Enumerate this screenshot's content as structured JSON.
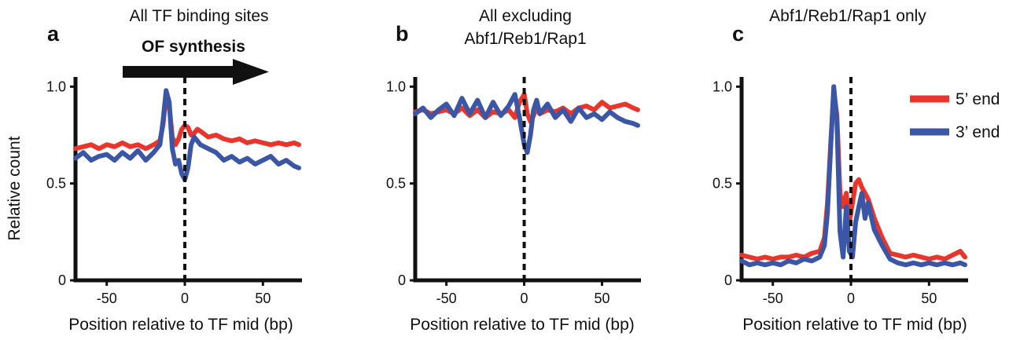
{
  "figure": {
    "ylabel": "Relative count",
    "xlabel": "Position relative to TF mid (bp)",
    "arrow_label": "OF synthesis",
    "legend": [
      {
        "label": "5’ end",
        "color": "#e8362d"
      },
      {
        "label": "3’ end",
        "color": "#3a56a5"
      }
    ]
  },
  "chart_data": [
    {
      "type": "line",
      "panel": "a",
      "title_lines": [
        "All TF binding sites"
      ],
      "xlim": [
        -70,
        75
      ],
      "ylim": [
        0,
        1.05
      ],
      "xticks": [
        -50,
        0,
        50
      ],
      "xtick_labels": [
        "-50",
        "0",
        "50"
      ],
      "yticks": [
        0,
        0.5,
        1.0
      ],
      "ytick_labels": [
        "0",
        "0.5",
        "1.0"
      ],
      "vline_x": 0,
      "series": [
        {
          "name": "5’ end",
          "color": "#e8362d",
          "x": [
            -70,
            -65,
            -60,
            -55,
            -50,
            -45,
            -40,
            -35,
            -30,
            -25,
            -20,
            -16,
            -14,
            -12,
            -10,
            -8,
            -6,
            -4,
            -2,
            0,
            2,
            4,
            6,
            8,
            10,
            15,
            20,
            25,
            30,
            35,
            40,
            45,
            50,
            55,
            60,
            65,
            70,
            73
          ],
          "y": [
            0.68,
            0.69,
            0.7,
            0.68,
            0.7,
            0.69,
            0.71,
            0.69,
            0.7,
            0.68,
            0.7,
            0.72,
            0.8,
            0.95,
            0.9,
            0.74,
            0.7,
            0.73,
            0.78,
            0.8,
            0.79,
            0.75,
            0.76,
            0.78,
            0.77,
            0.74,
            0.75,
            0.73,
            0.72,
            0.73,
            0.71,
            0.72,
            0.71,
            0.7,
            0.71,
            0.7,
            0.71,
            0.7
          ]
        },
        {
          "name": "3’ end",
          "color": "#3a56a5",
          "x": [
            -70,
            -65,
            -60,
            -55,
            -50,
            -45,
            -40,
            -35,
            -30,
            -25,
            -20,
            -16,
            -14,
            -12,
            -10,
            -8,
            -6,
            -4,
            -2,
            0,
            2,
            4,
            6,
            8,
            10,
            15,
            20,
            25,
            30,
            35,
            40,
            45,
            50,
            55,
            60,
            65,
            70,
            73
          ],
          "y": [
            0.63,
            0.66,
            0.62,
            0.64,
            0.65,
            0.62,
            0.66,
            0.63,
            0.67,
            0.62,
            0.66,
            0.7,
            0.82,
            0.98,
            0.92,
            0.68,
            0.6,
            0.62,
            0.55,
            0.52,
            0.58,
            0.7,
            0.74,
            0.72,
            0.7,
            0.68,
            0.66,
            0.62,
            0.64,
            0.61,
            0.63,
            0.6,
            0.62,
            0.64,
            0.6,
            0.62,
            0.59,
            0.58
          ]
        }
      ]
    },
    {
      "type": "line",
      "panel": "b",
      "title_lines": [
        "All excluding",
        "Abf1/Reb1/Rap1"
      ],
      "xlim": [
        -70,
        75
      ],
      "ylim": [
        0,
        1.05
      ],
      "xticks": [
        -50,
        0,
        50
      ],
      "xtick_labels": [
        "-50",
        "0",
        "50"
      ],
      "yticks": [
        0,
        0.5,
        1.0
      ],
      "ytick_labels": [
        "0",
        "0.5",
        "1.0"
      ],
      "vline_x": 0,
      "series": [
        {
          "name": "5’ end",
          "color": "#e8362d",
          "x": [
            -70,
            -65,
            -60,
            -55,
            -50,
            -45,
            -40,
            -35,
            -30,
            -25,
            -20,
            -15,
            -10,
            -6,
            -3,
            0,
            2,
            4,
            6,
            8,
            10,
            15,
            20,
            25,
            30,
            35,
            40,
            45,
            50,
            55,
            60,
            65,
            70,
            73
          ],
          "y": [
            0.87,
            0.88,
            0.86,
            0.87,
            0.88,
            0.86,
            0.89,
            0.85,
            0.88,
            0.84,
            0.87,
            0.86,
            0.88,
            0.84,
            0.92,
            0.96,
            0.86,
            0.82,
            0.85,
            0.89,
            0.86,
            0.88,
            0.87,
            0.89,
            0.86,
            0.89,
            0.9,
            0.88,
            0.92,
            0.89,
            0.9,
            0.91,
            0.89,
            0.88
          ]
        },
        {
          "name": "3’ end",
          "color": "#3a56a5",
          "x": [
            -70,
            -65,
            -60,
            -55,
            -50,
            -45,
            -40,
            -35,
            -30,
            -25,
            -20,
            -15,
            -10,
            -6,
            -3,
            0,
            2,
            4,
            6,
            8,
            10,
            15,
            20,
            25,
            30,
            35,
            40,
            45,
            50,
            55,
            60,
            65,
            70,
            73
          ],
          "y": [
            0.86,
            0.89,
            0.84,
            0.88,
            0.91,
            0.85,
            0.94,
            0.86,
            0.93,
            0.84,
            0.92,
            0.85,
            0.9,
            0.96,
            0.84,
            0.7,
            0.66,
            0.75,
            0.88,
            0.93,
            0.86,
            0.91,
            0.84,
            0.88,
            0.82,
            0.89,
            0.84,
            0.86,
            0.83,
            0.87,
            0.84,
            0.82,
            0.81,
            0.8
          ]
        }
      ]
    },
    {
      "type": "line",
      "panel": "c",
      "title_lines": [
        "Abf1/Reb1/Rap1 only"
      ],
      "xlim": [
        -70,
        75
      ],
      "ylim": [
        0,
        1.05
      ],
      "xticks": [
        -50,
        0,
        50
      ],
      "xtick_labels": [
        "-50",
        "0",
        "50"
      ],
      "yticks": [
        0,
        0.5,
        1.0
      ],
      "ytick_labels": [
        "0",
        "0.5",
        "1.0"
      ],
      "vline_x": 0,
      "series": [
        {
          "name": "5’ end",
          "color": "#e8362d",
          "x": [
            -70,
            -65,
            -60,
            -55,
            -50,
            -45,
            -40,
            -35,
            -30,
            -25,
            -20,
            -17,
            -15,
            -13,
            -11,
            -9,
            -7,
            -5,
            -3,
            -1,
            1,
            3,
            5,
            7,
            9,
            11,
            15,
            20,
            25,
            30,
            35,
            40,
            45,
            50,
            55,
            60,
            65,
            70,
            73
          ],
          "y": [
            0.13,
            0.12,
            0.11,
            0.12,
            0.11,
            0.12,
            0.12,
            0.13,
            0.12,
            0.14,
            0.15,
            0.22,
            0.4,
            0.7,
            0.98,
            0.85,
            0.45,
            0.38,
            0.45,
            0.3,
            0.4,
            0.5,
            0.52,
            0.48,
            0.45,
            0.42,
            0.32,
            0.22,
            0.14,
            0.13,
            0.12,
            0.13,
            0.12,
            0.11,
            0.12,
            0.11,
            0.13,
            0.15,
            0.12
          ]
        },
        {
          "name": "3’ end",
          "color": "#3a56a5",
          "x": [
            -70,
            -65,
            -60,
            -55,
            -50,
            -45,
            -40,
            -35,
            -30,
            -25,
            -20,
            -17,
            -15,
            -13,
            -11,
            -9,
            -7,
            -5,
            -3,
            -1,
            1,
            3,
            5,
            7,
            9,
            11,
            15,
            20,
            25,
            30,
            35,
            40,
            45,
            50,
            55,
            60,
            65,
            70,
            73
          ],
          "y": [
            0.1,
            0.08,
            0.09,
            0.08,
            0.09,
            0.08,
            0.1,
            0.09,
            0.11,
            0.1,
            0.12,
            0.18,
            0.35,
            0.68,
            1.0,
            0.82,
            0.25,
            0.12,
            0.38,
            0.15,
            0.12,
            0.3,
            0.38,
            0.45,
            0.32,
            0.4,
            0.26,
            0.18,
            0.11,
            0.09,
            0.08,
            0.09,
            0.08,
            0.09,
            0.08,
            0.09,
            0.08,
            0.09,
            0.08
          ]
        }
      ]
    }
  ]
}
